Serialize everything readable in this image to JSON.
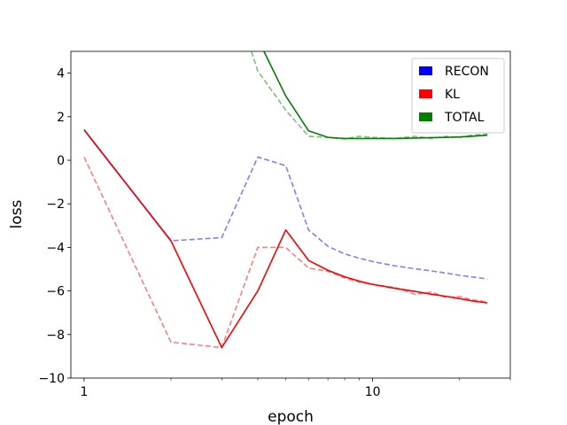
{
  "chart_data": {
    "type": "line",
    "xscale": "log",
    "xlabel": "epoch",
    "ylabel": "loss",
    "xlim": [
      0.9,
      30
    ],
    "ylim": [
      -10,
      5
    ],
    "xticks": [
      {
        "value": 1,
        "label": "1"
      },
      {
        "value": 10,
        "label": "10"
      }
    ],
    "yticks": [
      {
        "value": -10,
        "label": "−10"
      },
      {
        "value": -8,
        "label": "−8"
      },
      {
        "value": -6,
        "label": "−6"
      },
      {
        "value": -4,
        "label": "−4"
      },
      {
        "value": -2,
        "label": "−2"
      },
      {
        "value": 0,
        "label": "0"
      },
      {
        "value": 2,
        "label": "2"
      },
      {
        "value": 4,
        "label": "4"
      }
    ],
    "legend": {
      "placement": "upper right",
      "entries": [
        {
          "label": "RECON",
          "color": "#0000ff"
        },
        {
          "label": "KL",
          "color": "#ff0000"
        },
        {
          "label": "TOTAL",
          "color": "#008000"
        }
      ]
    },
    "series": [
      {
        "legend_index": 0,
        "color": "#0000ff",
        "style": "solid",
        "opacity": 1.0,
        "x": [
          1,
          2
        ],
        "y": [
          1.4,
          -3.7
        ]
      },
      {
        "legend_index": 0,
        "color": "#0000ff",
        "style": "dashed",
        "opacity": 0.5,
        "x": [
          1,
          2,
          3,
          4,
          5,
          6,
          7,
          8,
          9,
          10,
          12,
          14,
          16,
          18,
          20,
          22,
          25
        ],
        "y": [
          1.4,
          -3.7,
          -3.55,
          0.15,
          -0.25,
          -3.2,
          -3.95,
          -4.3,
          -4.5,
          -4.65,
          -4.85,
          -4.98,
          -5.08,
          -5.18,
          -5.28,
          -5.35,
          -5.45
        ]
      },
      {
        "legend_index": 1,
        "color": "#ff0000",
        "style": "solid",
        "opacity": 1.0,
        "x": [
          1,
          2,
          3,
          4,
          5,
          6,
          7,
          8,
          9,
          10,
          12,
          14,
          16,
          18,
          20,
          22,
          25
        ],
        "y": [
          1.4,
          -3.7,
          -8.6,
          -6.0,
          -3.2,
          -4.6,
          -5.05,
          -5.35,
          -5.55,
          -5.7,
          -5.88,
          -6.02,
          -6.15,
          -6.25,
          -6.35,
          -6.45,
          -6.55
        ]
      },
      {
        "legend_index": 1,
        "color": "#ff0000",
        "style": "dashed",
        "opacity": 0.5,
        "x": [
          1,
          2,
          3,
          4,
          5,
          6,
          7,
          8,
          9,
          10,
          12,
          14,
          16,
          18,
          20,
          22,
          25
        ],
        "y": [
          0.15,
          -8.35,
          -8.6,
          -4.0,
          -4.0,
          -4.95,
          -5.1,
          -5.4,
          -5.6,
          -5.7,
          -5.85,
          -6.15,
          -6.05,
          -6.3,
          -6.25,
          -6.4,
          -6.5
        ]
      },
      {
        "legend_index": 2,
        "color": "#008000",
        "style": "solid",
        "opacity": 1.0,
        "x": [
          4.2,
          5,
          6,
          7,
          8,
          9,
          10,
          12,
          14,
          16,
          18,
          20,
          22,
          25
        ],
        "y": [
          5.0,
          2.95,
          1.35,
          1.05,
          1.0,
          1.0,
          1.0,
          1.0,
          1.02,
          1.04,
          1.05,
          1.07,
          1.1,
          1.15
        ]
      },
      {
        "legend_index": 2,
        "color": "#008000",
        "style": "dashed",
        "opacity": 0.5,
        "x": [
          3.8,
          4,
          5,
          6,
          7,
          8,
          9,
          10,
          12,
          14,
          16,
          18,
          20,
          22,
          25
        ],
        "y": [
          5.0,
          4.1,
          2.3,
          1.1,
          1.05,
          0.98,
          1.1,
          1.05,
          1.0,
          1.1,
          1.0,
          1.1,
          1.05,
          1.15,
          1.2
        ]
      }
    ]
  }
}
